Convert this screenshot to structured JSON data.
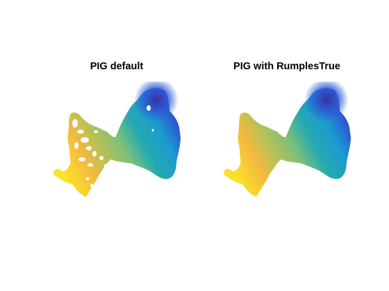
{
  "panels": [
    {
      "title": "PIG default",
      "rumples": true
    },
    {
      "title": "PIG with RumplesTrue",
      "rumples": false
    }
  ],
  "colors": {
    "yellow": "#f9e229",
    "orange": "#f6b93e",
    "olive": "#b8c156",
    "green": "#7bc07a",
    "teal": "#25aab0",
    "cyan": "#1b9ad0",
    "blue": "#2b5bd3",
    "navy": "#3c2ea0"
  }
}
